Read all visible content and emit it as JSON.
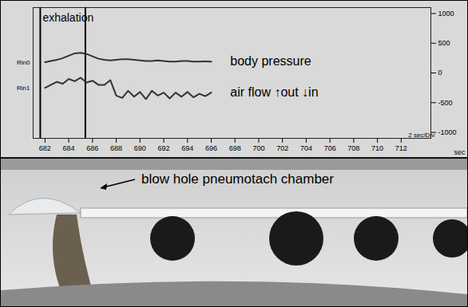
{
  "chart_data": {
    "type": "line",
    "x": [
      682,
      682.5,
      683,
      683.5,
      684,
      684.5,
      685,
      685.5,
      686,
      686.5,
      687,
      687.5,
      688,
      688.5,
      689,
      689.5,
      690,
      690.5,
      691,
      691.5,
      692,
      692.5,
      693,
      693.5,
      694,
      694.5,
      695,
      695.5,
      696
    ],
    "series": [
      {
        "name": "body pressure",
        "channel": "Rin0",
        "color": "#333333",
        "values": [
          180,
          200,
          220,
          250,
          290,
          330,
          340,
          320,
          280,
          240,
          220,
          210,
          220,
          230,
          230,
          220,
          210,
          200,
          200,
          210,
          200,
          190,
          190,
          200,
          200,
          190,
          190,
          195,
          190
        ]
      },
      {
        "name": "air flow ↑out ↓in",
        "channel": "Rin1",
        "color": "#333333",
        "values": [
          -250,
          -200,
          -150,
          -180,
          -100,
          -140,
          -80,
          -160,
          -130,
          -200,
          -200,
          -120,
          -380,
          -420,
          -300,
          -400,
          -320,
          -440,
          -300,
          -380,
          -330,
          -430,
          -330,
          -400,
          -320,
          -410,
          -350,
          -390,
          -330
        ]
      }
    ],
    "xlabel": "sec",
    "xlim": [
      681,
      714.5
    ],
    "xticks": [
      682,
      684,
      686,
      688,
      690,
      692,
      694,
      696,
      698,
      700,
      702,
      704,
      706,
      708,
      710,
      712
    ],
    "ylim": [
      -1100,
      1100
    ],
    "yticks": [
      -1000,
      -500,
      0,
      500,
      1000
    ],
    "annotations": [
      {
        "text": "exhalation",
        "x": 681.8,
        "y": 930
      },
      {
        "text": "2 sec/Div",
        "x": 712.6,
        "y": -1050
      }
    ],
    "exhalation_marks": [
      681.6,
      685.4
    ],
    "grid": false
  },
  "photo": {
    "label": "blow hole pneumotach chamber"
  }
}
